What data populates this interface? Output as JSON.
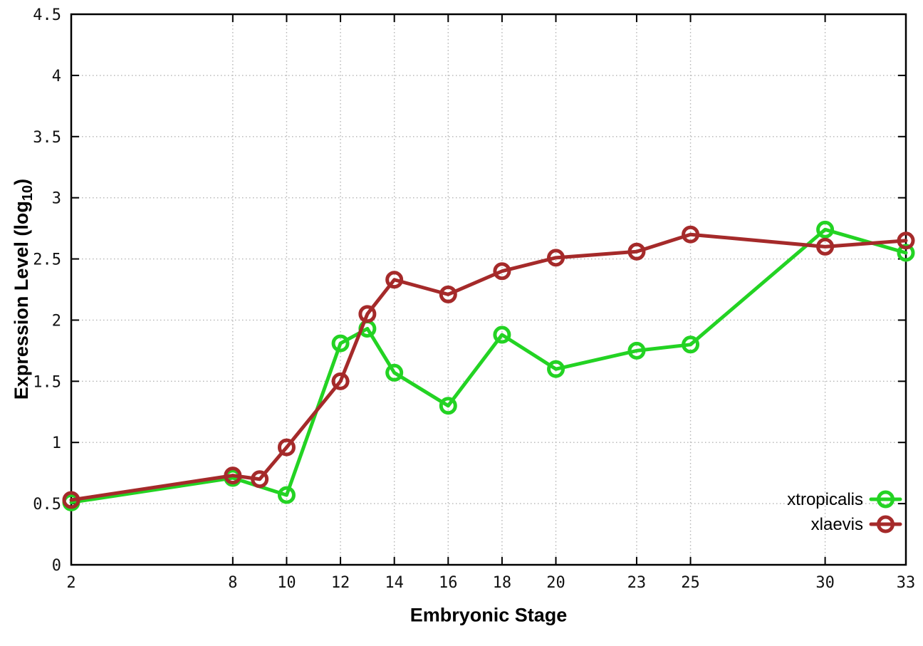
{
  "chart_data": {
    "type": "line",
    "title": "",
    "xlabel": "Embryonic Stage",
    "ylabel": {
      "base": "Expression Level (log",
      "sub": "10",
      "end": ")"
    },
    "xlim": [
      2,
      33
    ],
    "ylim": [
      0,
      4.5
    ],
    "x_ticks": [
      2,
      8,
      10,
      12,
      14,
      16,
      18,
      20,
      23,
      25,
      30,
      33
    ],
    "x_tick_labels": [
      "2",
      "8",
      "10",
      "12",
      "14",
      "16",
      "18",
      "20",
      "23",
      "25",
      "30",
      "33"
    ],
    "y_ticks": [
      0,
      0.5,
      1,
      1.5,
      2,
      2.5,
      3,
      3.5,
      4,
      4.5
    ],
    "y_tick_labels": [
      "0",
      "0.5",
      "1",
      "1.5",
      "2",
      "2.5",
      "3",
      "3.5",
      "4",
      "4.5"
    ],
    "grid": true,
    "grid_style": "dotted",
    "legend": {
      "position": "inside-bottom-right"
    },
    "colors": {
      "xtropicalis": "#23d323",
      "xlaevis": "#a52a2a",
      "grid": "#b4b4b4",
      "border": "#000000",
      "text": "#111111"
    },
    "series": [
      {
        "name": "xtropicalis",
        "color": "#23d323",
        "marker": "open-circle",
        "points": [
          [
            2,
            0.51
          ],
          [
            8,
            0.71
          ],
          [
            10,
            0.57
          ],
          [
            12,
            1.81
          ],
          [
            13,
            1.93
          ],
          [
            14,
            1.57
          ],
          [
            16,
            1.3
          ],
          [
            18,
            1.88
          ],
          [
            20,
            1.6
          ],
          [
            23,
            1.75
          ],
          [
            25,
            1.8
          ],
          [
            30,
            2.74
          ],
          [
            33,
            2.55
          ]
        ]
      },
      {
        "name": "xlaevis",
        "color": "#a52a2a",
        "marker": "open-circle",
        "points": [
          [
            2,
            0.53
          ],
          [
            8,
            0.73
          ],
          [
            9,
            0.7
          ],
          [
            10,
            0.96
          ],
          [
            12,
            1.5
          ],
          [
            13,
            2.05
          ],
          [
            14,
            2.33
          ],
          [
            16,
            2.21
          ],
          [
            18,
            2.4
          ],
          [
            20,
            2.51
          ],
          [
            23,
            2.56
          ],
          [
            25,
            2.7
          ],
          [
            30,
            2.6
          ],
          [
            33,
            2.65
          ]
        ]
      }
    ]
  }
}
